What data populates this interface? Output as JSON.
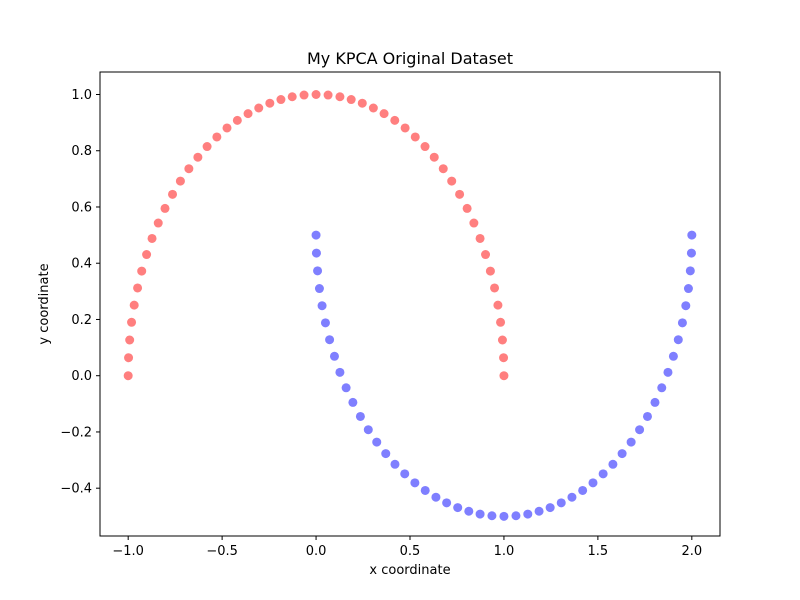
{
  "chart_data": {
    "type": "scatter",
    "title": "My KPCA Original Dataset",
    "xlabel": "x coordinate",
    "ylabel": "y coordinate",
    "xlim": [
      -1.15,
      2.15
    ],
    "ylim": [
      -0.57,
      1.08
    ],
    "xticks": [
      -1.0,
      -0.5,
      0.0,
      0.5,
      1.0,
      1.5,
      2.0
    ],
    "xtick_labels": [
      "−1.0",
      "−0.5",
      "0.0",
      "0.5",
      "1.0",
      "1.5",
      "2.0"
    ],
    "yticks": [
      -0.4,
      -0.2,
      0.0,
      0.2,
      0.4,
      0.6,
      0.8,
      1.0
    ],
    "ytick_labels": [
      "−0.4",
      "−0.2",
      "0.0",
      "0.2",
      "0.4",
      "0.6",
      "0.8",
      "1.0"
    ],
    "grid": false,
    "legend": false,
    "series": [
      {
        "color": "#ff0000",
        "alpha": 0.5,
        "x": [
          -1.0,
          -0.998,
          -0.992,
          -0.982,
          -0.968,
          -0.95,
          -0.928,
          -0.902,
          -0.873,
          -0.84,
          -0.804,
          -0.764,
          -0.722,
          -0.677,
          -0.629,
          -0.58,
          -0.528,
          -0.474,
          -0.419,
          -0.362,
          -0.305,
          -0.246,
          -0.187,
          -0.127,
          -0.064,
          0.0,
          0.064,
          0.127,
          0.187,
          0.246,
          0.305,
          0.362,
          0.419,
          0.474,
          0.528,
          0.58,
          0.629,
          0.677,
          0.722,
          0.764,
          0.804,
          0.84,
          0.873,
          0.902,
          0.928,
          0.95,
          0.968,
          0.982,
          0.992,
          0.998,
          1.0
        ],
        "y": [
          0.0,
          0.064,
          0.127,
          0.19,
          0.251,
          0.312,
          0.372,
          0.431,
          0.488,
          0.543,
          0.595,
          0.645,
          0.692,
          0.736,
          0.777,
          0.815,
          0.849,
          0.881,
          0.908,
          0.932,
          0.952,
          0.969,
          0.982,
          0.992,
          0.998,
          1.0,
          0.998,
          0.992,
          0.982,
          0.969,
          0.952,
          0.932,
          0.908,
          0.881,
          0.849,
          0.815,
          0.777,
          0.736,
          0.692,
          0.645,
          0.595,
          0.543,
          0.488,
          0.431,
          0.372,
          0.312,
          0.251,
          0.19,
          0.127,
          0.064,
          0.0
        ]
      },
      {
        "color": "#0000ff",
        "alpha": 0.5,
        "x": [
          0.0,
          0.002,
          0.008,
          0.018,
          0.032,
          0.05,
          0.072,
          0.098,
          0.127,
          0.16,
          0.196,
          0.236,
          0.278,
          0.323,
          0.371,
          0.42,
          0.472,
          0.526,
          0.581,
          0.638,
          0.695,
          0.754,
          0.813,
          0.873,
          0.936,
          1.0,
          1.064,
          1.127,
          1.187,
          1.246,
          1.305,
          1.362,
          1.419,
          1.474,
          1.528,
          1.58,
          1.629,
          1.677,
          1.722,
          1.764,
          1.804,
          1.84,
          1.873,
          1.902,
          1.928,
          1.95,
          1.968,
          1.982,
          1.992,
          1.998,
          2.0
        ],
        "y": [
          0.5,
          0.436,
          0.373,
          0.31,
          0.249,
          0.188,
          0.128,
          0.069,
          0.012,
          -0.043,
          -0.095,
          -0.145,
          -0.192,
          -0.236,
          -0.277,
          -0.315,
          -0.349,
          -0.381,
          -0.408,
          -0.432,
          -0.452,
          -0.469,
          -0.482,
          -0.492,
          -0.498,
          -0.5,
          -0.498,
          -0.492,
          -0.482,
          -0.469,
          -0.452,
          -0.432,
          -0.408,
          -0.381,
          -0.349,
          -0.315,
          -0.277,
          -0.236,
          -0.192,
          -0.145,
          -0.095,
          -0.043,
          0.012,
          0.069,
          0.128,
          0.188,
          0.249,
          0.31,
          0.373,
          0.436,
          0.5
        ]
      }
    ]
  }
}
